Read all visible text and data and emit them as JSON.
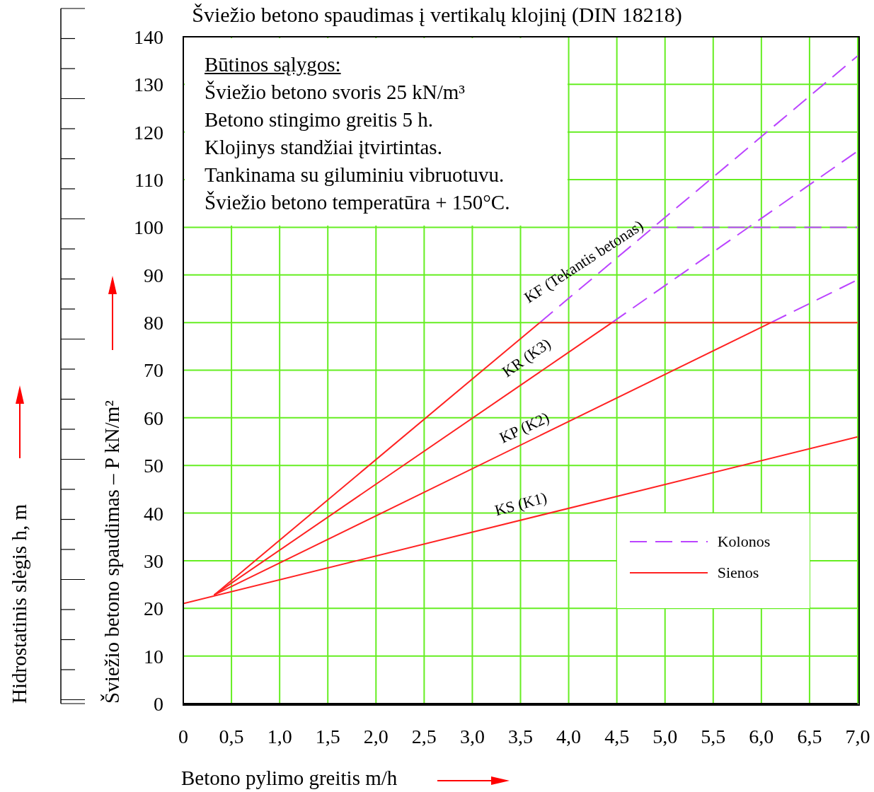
{
  "chart_data": {
    "type": "line",
    "title": "Šviežio betono spaudimas į vertikalų klojinį (DIN 18218)",
    "xlabel": "Betono pylimo greitis m/h",
    "ylabel": "Šviežio betono spaudimas – P kN/m²",
    "xlim": [
      0,
      7
    ],
    "ylim": [
      0,
      140
    ],
    "xticks": [
      0,
      {
        "value": 0.5,
        "label": "0,5"
      },
      {
        "value": 1,
        "label": "1,0"
      },
      {
        "value": 1.5,
        "label": "1,5"
      },
      {
        "value": 2,
        "label": "2,0"
      },
      {
        "value": 2.5,
        "label": "2,5"
      },
      {
        "value": 3,
        "label": "3,0"
      },
      {
        "value": 3.5,
        "label": "3,5"
      },
      {
        "value": 4,
        "label": "4,0"
      },
      {
        "value": 4.5,
        "label": "4,5"
      },
      {
        "value": 5,
        "label": "5,0"
      },
      {
        "value": 5.5,
        "label": "5,5"
      },
      {
        "value": 6,
        "label": "6,0"
      },
      {
        "value": 6.5,
        "label": "6,5"
      },
      {
        "value": 7,
        "label": "7,0"
      }
    ],
    "yticks": [
      0,
      10,
      20,
      30,
      40,
      50,
      60,
      70,
      80,
      90,
      100,
      110,
      120,
      130,
      140
    ],
    "grid": true,
    "legend": "bottom right",
    "series": [
      {
        "name": "Kolonos",
        "color": "#bb44ff",
        "line_style": "dashed",
        "x": [
          3.7,
          7
        ],
        "values": [
          80,
          136
        ]
      },
      {
        "color": "#bb44ff",
        "line_style": "dashed",
        "x": [
          4.45,
          7
        ],
        "values": [
          80,
          116
        ]
      },
      {
        "color": "#bb44ff",
        "line_style": "dashed",
        "x": [
          6.1,
          7
        ],
        "values": [
          80,
          89
        ]
      },
      {
        "color": "#bb44ff",
        "line_style": "dashed",
        "x": [
          4.86,
          7
        ],
        "values": [
          100,
          100
        ]
      },
      {
        "name": "Sienos",
        "color": "#ff2222",
        "line_style": "solid",
        "x": [
          0,
          7
        ],
        "values": [
          21,
          56
        ]
      },
      {
        "color": "#ff2222",
        "line_style": "solid",
        "x": [
          0.32,
          3.7
        ],
        "values": [
          22.8,
          80
        ]
      },
      {
        "color": "#ff2222",
        "line_style": "solid",
        "x": [
          0.32,
          4.45
        ],
        "values": [
          22.8,
          80
        ]
      },
      {
        "color": "#ff2222",
        "line_style": "solid",
        "x": [
          0.32,
          6.1
        ],
        "values": [
          22.8,
          80
        ]
      },
      {
        "color": "#ff2222",
        "line_style": "solid",
        "x": [
          3.7,
          7
        ],
        "values": [
          80,
          80
        ]
      }
    ],
    "annotations": [
      "KF (Tekantis betonas)",
      "KR (K3)",
      "KP (K2)",
      "KS (K1)",
      "Būtinos sąlygos:",
      "Šviežio betono svoris 25 kN/m³",
      "Betono stingimo greitis 5 h.",
      "Klojinys standžiai įtvirtintas.",
      "Tankinama su giluminiu vibruotuvu.",
      "Šviežio betono temperatūra + 150°C.",
      "Hidrostatinis slėgis h, m"
    ]
  }
}
